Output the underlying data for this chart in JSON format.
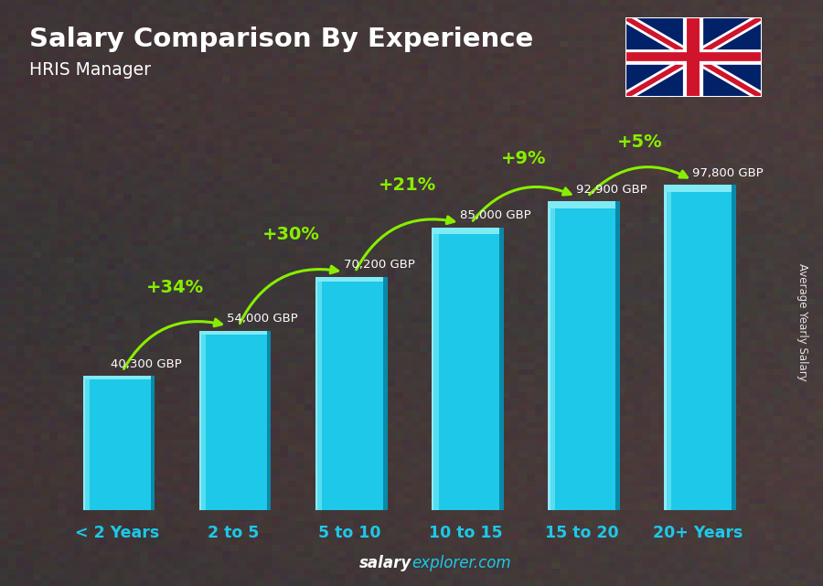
{
  "title": "Salary Comparison By Experience",
  "subtitle": "HRIS Manager",
  "categories": [
    "< 2 Years",
    "2 to 5",
    "5 to 10",
    "10 to 15",
    "15 to 20",
    "20+ Years"
  ],
  "values": [
    40300,
    54000,
    70200,
    85000,
    92900,
    97800
  ],
  "labels": [
    "40,300 GBP",
    "54,000 GBP",
    "70,200 GBP",
    "85,000 GBP",
    "92,900 GBP",
    "97,800 GBP"
  ],
  "pct_changes": [
    "+34%",
    "+30%",
    "+21%",
    "+9%",
    "+5%"
  ],
  "bar_color_main": "#1ec8e8",
  "bar_color_light": "#55ddf0",
  "bar_color_top": "#80eaf5",
  "bar_color_dark": "#0a8aaa",
  "bg_color": "#3a3a3a",
  "title_color": "#ffffff",
  "label_color": "#ffffff",
  "category_color": "#1ec8e8",
  "pct_color": "#88ee00",
  "footer_salary_color": "#ffffff",
  "footer_explorer_color": "#1ec8e8",
  "ylabel_text": "Average Yearly Salary",
  "ylim": [
    0,
    120000
  ],
  "bar_width": 0.58
}
